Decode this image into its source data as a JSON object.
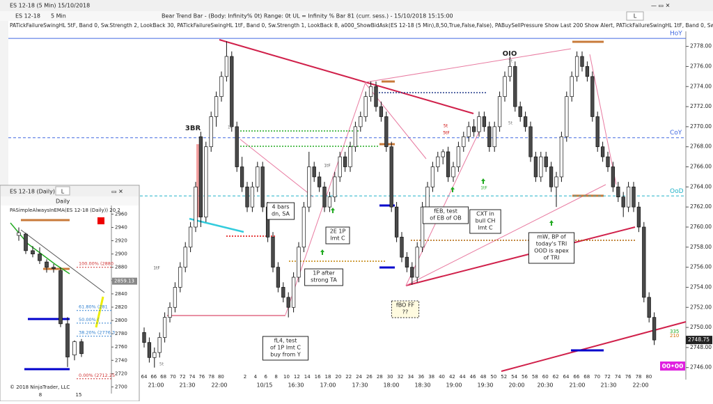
{
  "window": {
    "title": "ES 12-18 (5 Min) 15/10/2018",
    "instrument": "ES 12-18",
    "interval": "5 Min",
    "status": "Bear Trend Bar - (Body: Infinity%  0t)    Range: 0t    UL = Infinity %   Bar 81 (curr. sess.) - 15/10/2018 15:15:00",
    "button": "L",
    "indicators": "PATickFailureSwingHL    5tF,  Band 0,  Sw.Strength 2,  LookBack 30,  PATickFailureSwingHL    1tF,  Band 0,  Sw.Strength 1,  LookBack 8,  a000_ShowBidAsk(ES 12-18 (5 Min),8,50,True,False,False),  PABuySellPressure    Show Last 200    Show Alert,  PATickFailureSwingHL    1tF,  Band 0,  Sw.Str"
  },
  "chart_data": [
    {
      "type": "candlestick",
      "ylim": [
        2744.8,
        2779.5
      ],
      "yticks": [
        {
          "value": 2746,
          "label": "2746.00"
        },
        {
          "value": 2748,
          "label": "2748.00"
        },
        {
          "value": 2750,
          "label": "2750.00"
        },
        {
          "value": 2752,
          "label": "2752.00"
        },
        {
          "value": 2754,
          "label": "2754.00"
        },
        {
          "value": 2756,
          "label": "2756.00"
        },
        {
          "value": 2758,
          "label": "2758.00"
        },
        {
          "value": 2760,
          "label": "2760.00"
        },
        {
          "value": 2762,
          "label": "2762.00"
        },
        {
          "value": 2764,
          "label": "2764.00"
        },
        {
          "value": 2766,
          "label": "2766.00"
        },
        {
          "value": 2768,
          "label": "2768.00"
        },
        {
          "value": 2770,
          "label": "2770.00"
        },
        {
          "value": 2772,
          "label": "2772.00"
        },
        {
          "value": 2774,
          "label": "2774.00"
        },
        {
          "value": 2776,
          "label": "2776.00"
        },
        {
          "value": 2778,
          "label": "2778.00"
        }
      ],
      "up_color": "#ffffff",
      "down_color": "#4a4a4a",
      "candles": [
        [
          2749.5,
          2750,
          2748,
          2748.5
        ],
        [
          2748.5,
          2749,
          2746.5,
          2747
        ],
        [
          2747,
          2748,
          2746,
          2747.5
        ],
        [
          2747.5,
          2749.5,
          2747,
          2749
        ],
        [
          2749,
          2751.5,
          2748.5,
          2751
        ],
        [
          2751,
          2752.5,
          2750.5,
          2752
        ],
        [
          2752,
          2754.5,
          2751.5,
          2754
        ],
        [
          2754,
          2756.5,
          2753.5,
          2756
        ],
        [
          2756,
          2758.5,
          2755.5,
          2758
        ],
        [
          2758,
          2760.5,
          2757.5,
          2760
        ],
        [
          2760,
          2764.5,
          2759.5,
          2764
        ],
        [
          2769,
          2769.5,
          2760,
          2761
        ],
        [
          2761,
          2768.5,
          2760.5,
          2768
        ],
        [
          2768,
          2771.5,
          2767.5,
          2771
        ],
        [
          2771,
          2773.5,
          2770,
          2773
        ],
        [
          2773,
          2775.5,
          2772.5,
          2775
        ],
        [
          2775,
          2778.5,
          2774.5,
          2777
        ],
        [
          2777,
          2777.5,
          2769.5,
          2770
        ],
        [
          2770,
          2770.5,
          2765.5,
          2766
        ],
        [
          2766,
          2767,
          2763.5,
          2764
        ],
        [
          2764,
          2764.5,
          2761.5,
          2762
        ],
        [
          2762,
          2764.5,
          2761.5,
          2764
        ],
        [
          2764,
          2766.5,
          2763.5,
          2766
        ],
        [
          2766,
          2766.5,
          2761.5,
          2762
        ],
        [
          2762,
          2762.5,
          2758.5,
          2759
        ],
        [
          2759,
          2759.5,
          2755.5,
          2756
        ],
        [
          2756,
          2756.5,
          2753.5,
          2754
        ],
        [
          2754,
          2754.5,
          2752.5,
          2753
        ],
        [
          2753,
          2753.5,
          2751,
          2752
        ],
        [
          2752,
          2755.5,
          2751.5,
          2755
        ],
        [
          2755,
          2758.5,
          2754.5,
          2758
        ],
        [
          2758,
          2762.5,
          2757.5,
          2762
        ],
        [
          2762,
          2767.5,
          2761.5,
          2766
        ],
        [
          2766,
          2766.5,
          2764.5,
          2765
        ],
        [
          2765,
          2765.5,
          2763.5,
          2764
        ],
        [
          2764,
          2764.5,
          2761.5,
          2762
        ],
        [
          2762,
          2763.5,
          2761.5,
          2763
        ],
        [
          2763,
          2765.5,
          2762.5,
          2765
        ],
        [
          2765,
          2767.5,
          2764.5,
          2767
        ],
        [
          2767,
          2767.5,
          2765.5,
          2766
        ],
        [
          2766,
          2768.5,
          2765.5,
          2768
        ],
        [
          2768,
          2770.5,
          2767.5,
          2770
        ],
        [
          2770,
          2771.5,
          2769.5,
          2771
        ],
        [
          2771,
          2773.5,
          2770.5,
          2773
        ],
        [
          2773,
          2774.5,
          2772.5,
          2774
        ],
        [
          2774,
          2774.5,
          2771.5,
          2772
        ],
        [
          2772,
          2772.5,
          2770.5,
          2771
        ],
        [
          2771,
          2771.5,
          2767.5,
          2768
        ],
        [
          2768,
          2768.5,
          2761.5,
          2762
        ],
        [
          2762,
          2762.5,
          2758.5,
          2759
        ],
        [
          2759,
          2759.5,
          2756.5,
          2757
        ],
        [
          2757,
          2757.5,
          2755.5,
          2756
        ],
        [
          2756,
          2756.5,
          2754.25,
          2755
        ],
        [
          2755,
          2758.5,
          2754.5,
          2758
        ],
        [
          2758,
          2762.5,
          2757.5,
          2762
        ],
        [
          2762,
          2764.5,
          2761.5,
          2764
        ],
        [
          2764,
          2766.5,
          2763.5,
          2766
        ],
        [
          2766,
          2767.5,
          2765.5,
          2767
        ],
        [
          2767,
          2767.75,
          2766.25,
          2767.5
        ],
        [
          2767.5,
          2768,
          2764.5,
          2765
        ],
        [
          2765,
          2766.5,
          2764.5,
          2766
        ],
        [
          2766,
          2768.5,
          2765.5,
          2768
        ],
        [
          2768,
          2769.5,
          2767.5,
          2769
        ],
        [
          2769,
          2770.5,
          2768.5,
          2770
        ],
        [
          2770,
          2770.75,
          2769,
          2769.5
        ],
        [
          2769.5,
          2771.5,
          2769,
          2771
        ],
        [
          2771,
          2771.5,
          2769.5,
          2770
        ],
        [
          2770,
          2770.5,
          2767.5,
          2768
        ],
        [
          2768,
          2770.5,
          2767.5,
          2770
        ],
        [
          2770,
          2773.5,
          2769.5,
          2773
        ],
        [
          2773,
          2775.5,
          2772.5,
          2775
        ],
        [
          2775,
          2777,
          2774.5,
          2776
        ],
        [
          2776,
          2776.5,
          2771.5,
          2772
        ],
        [
          2772,
          2772.5,
          2770.5,
          2771
        ],
        [
          2771,
          2771.5,
          2769.5,
          2770
        ],
        [
          2770,
          2770.5,
          2766.5,
          2767
        ],
        [
          2767,
          2767.5,
          2764.5,
          2765
        ],
        [
          2765,
          2767.5,
          2764.5,
          2767
        ],
        [
          2767,
          2767.5,
          2765.5,
          2766
        ],
        [
          2766,
          2766.5,
          2763.5,
          2764
        ],
        [
          2764,
          2765.5,
          2762,
          2765
        ],
        [
          2765,
          2769.5,
          2764.5,
          2769
        ],
        [
          2769,
          2773.5,
          2768.5,
          2773
        ],
        [
          2773,
          2775.5,
          2772.5,
          2775
        ],
        [
          2775,
          2777.5,
          2774.5,
          2777
        ],
        [
          2777,
          2777.5,
          2775.5,
          2776
        ],
        [
          2776,
          2776.5,
          2774.5,
          2775
        ],
        [
          2775,
          2775.5,
          2770.5,
          2771
        ],
        [
          2771,
          2771.5,
          2767.5,
          2768
        ],
        [
          2768,
          2768.5,
          2766.5,
          2767
        ],
        [
          2767,
          2767.5,
          2765.5,
          2766
        ],
        [
          2766,
          2766.5,
          2763.5,
          2764
        ],
        [
          2764,
          2764.5,
          2762.5,
          2763
        ],
        [
          2763,
          2763.5,
          2761,
          2762
        ],
        [
          2762,
          2764.5,
          2761.5,
          2764
        ],
        [
          2764,
          2764.5,
          2761.5,
          2762
        ],
        [
          2762,
          2762.5,
          2759.5,
          2760
        ],
        [
          2760,
          2760.5,
          2752.5,
          2753
        ],
        [
          2753,
          2753.5,
          2750.5,
          2751
        ],
        [
          2751,
          2751.5,
          2748.25,
          2748.75
        ]
      ],
      "levels": [
        {
          "name": "HoY",
          "value": 2778.8,
          "color": "#4169e1"
        },
        {
          "name": "CoY",
          "value": 2768.9,
          "color": "#4169e1"
        },
        {
          "name": "OoD",
          "value": 2763.1,
          "color": "#20b2c8"
        }
      ],
      "bar_labels": [
        "64",
        "66",
        "68",
        "70",
        "72",
        "74",
        "76",
        "78",
        "80",
        "2",
        "4",
        "6",
        "8",
        "10",
        "12",
        "14",
        "16",
        "18",
        "20",
        "22",
        "24",
        "26",
        "28",
        "30",
        "32",
        "34",
        "36",
        "38",
        "40",
        "42",
        "44",
        "46",
        "48",
        "50",
        "52",
        "54",
        "56",
        "58",
        "60",
        "62",
        "64",
        "66",
        "68",
        "70",
        "72",
        "74",
        "76",
        "78",
        "80"
      ],
      "time_labels": [
        "21:00",
        "21:30",
        "22:00",
        "10/15",
        "16:30",
        "17:00",
        "17:30",
        "18:00",
        "18:30",
        "19:00",
        "19:30",
        "20:00",
        "20:30",
        "21:00",
        "21:30",
        "22:00"
      ],
      "annotations": [
        {
          "lines": [
            "3BR"
          ]
        },
        {
          "lines": [
            "OIO"
          ]
        },
        {
          "lines": [
            "4 bars",
            "dn, SA"
          ]
        },
        {
          "lines": [
            "2E 1P",
            "lmt C"
          ]
        },
        {
          "lines": [
            "1P after",
            "strong TA"
          ]
        },
        {
          "lines": [
            "fL4, test",
            "of 1P lmt C",
            "buy from Y"
          ]
        },
        {
          "lines": [
            "fBO FF",
            "??"
          ]
        },
        {
          "lines": [
            "fEB, test",
            "of EB of OB"
          ]
        },
        {
          "lines": [
            "CXT in",
            "bull CH",
            "lmt C"
          ]
        },
        {
          "lines": [
            "mW, BP of",
            "today's TRI",
            "OOD is apex",
            "of TRI"
          ]
        }
      ],
      "markers": [
        "1tF",
        "1tF",
        "1tF",
        "5t",
        "5tF",
        "5t",
        "1t",
        "1t",
        "5t"
      ],
      "pressure": [
        "335",
        "210"
      ],
      "clock": "00•00"
    },
    {
      "type": "candlestick",
      "title": "ES 12-18 (Daily)",
      "interval": "Daily",
      "button": "L",
      "indicator": "PASimpleAlwaysInEMA(ES 12-18 (Daily)) 20 2",
      "ylim": [
        2690,
        2973
      ],
      "yticks": [
        2700,
        2720,
        2740,
        2760,
        2780,
        2800,
        2820,
        2840,
        2860,
        2880,
        2900,
        2920,
        2940,
        2960
      ],
      "candles": [
        [
          2928,
          2940,
          2920,
          2932
        ],
        [
          2930,
          2932,
          2900,
          2905
        ],
        [
          2905,
          2912,
          2895,
          2900
        ],
        [
          2900,
          2910,
          2885,
          2890
        ],
        [
          2888,
          2892,
          2872,
          2880
        ],
        [
          2880,
          2885,
          2872,
          2878
        ],
        [
          2875,
          2880,
          2790,
          2795
        ],
        [
          2795,
          2805,
          2730,
          2745
        ],
        [
          2748,
          2770,
          2740,
          2768
        ],
        [
          2768,
          2772,
          2745,
          2750
        ]
      ],
      "ema_value": 2859.13,
      "fib_levels": [
        {
          "value": 2880,
          "label": "100.00% (2880"
        },
        {
          "value": 2815,
          "label": "61.80% (281"
        },
        {
          "value": 2796,
          "label": "50.00% ("
        },
        {
          "value": 2776.3,
          "label": "38.20% (2776.3"
        },
        {
          "value": 2712.25,
          "label": "0.00% (2712.25"
        }
      ],
      "x_labels": [
        "8",
        "15"
      ],
      "copyright": "© 2018 NinjaTrader, LLC"
    }
  ]
}
